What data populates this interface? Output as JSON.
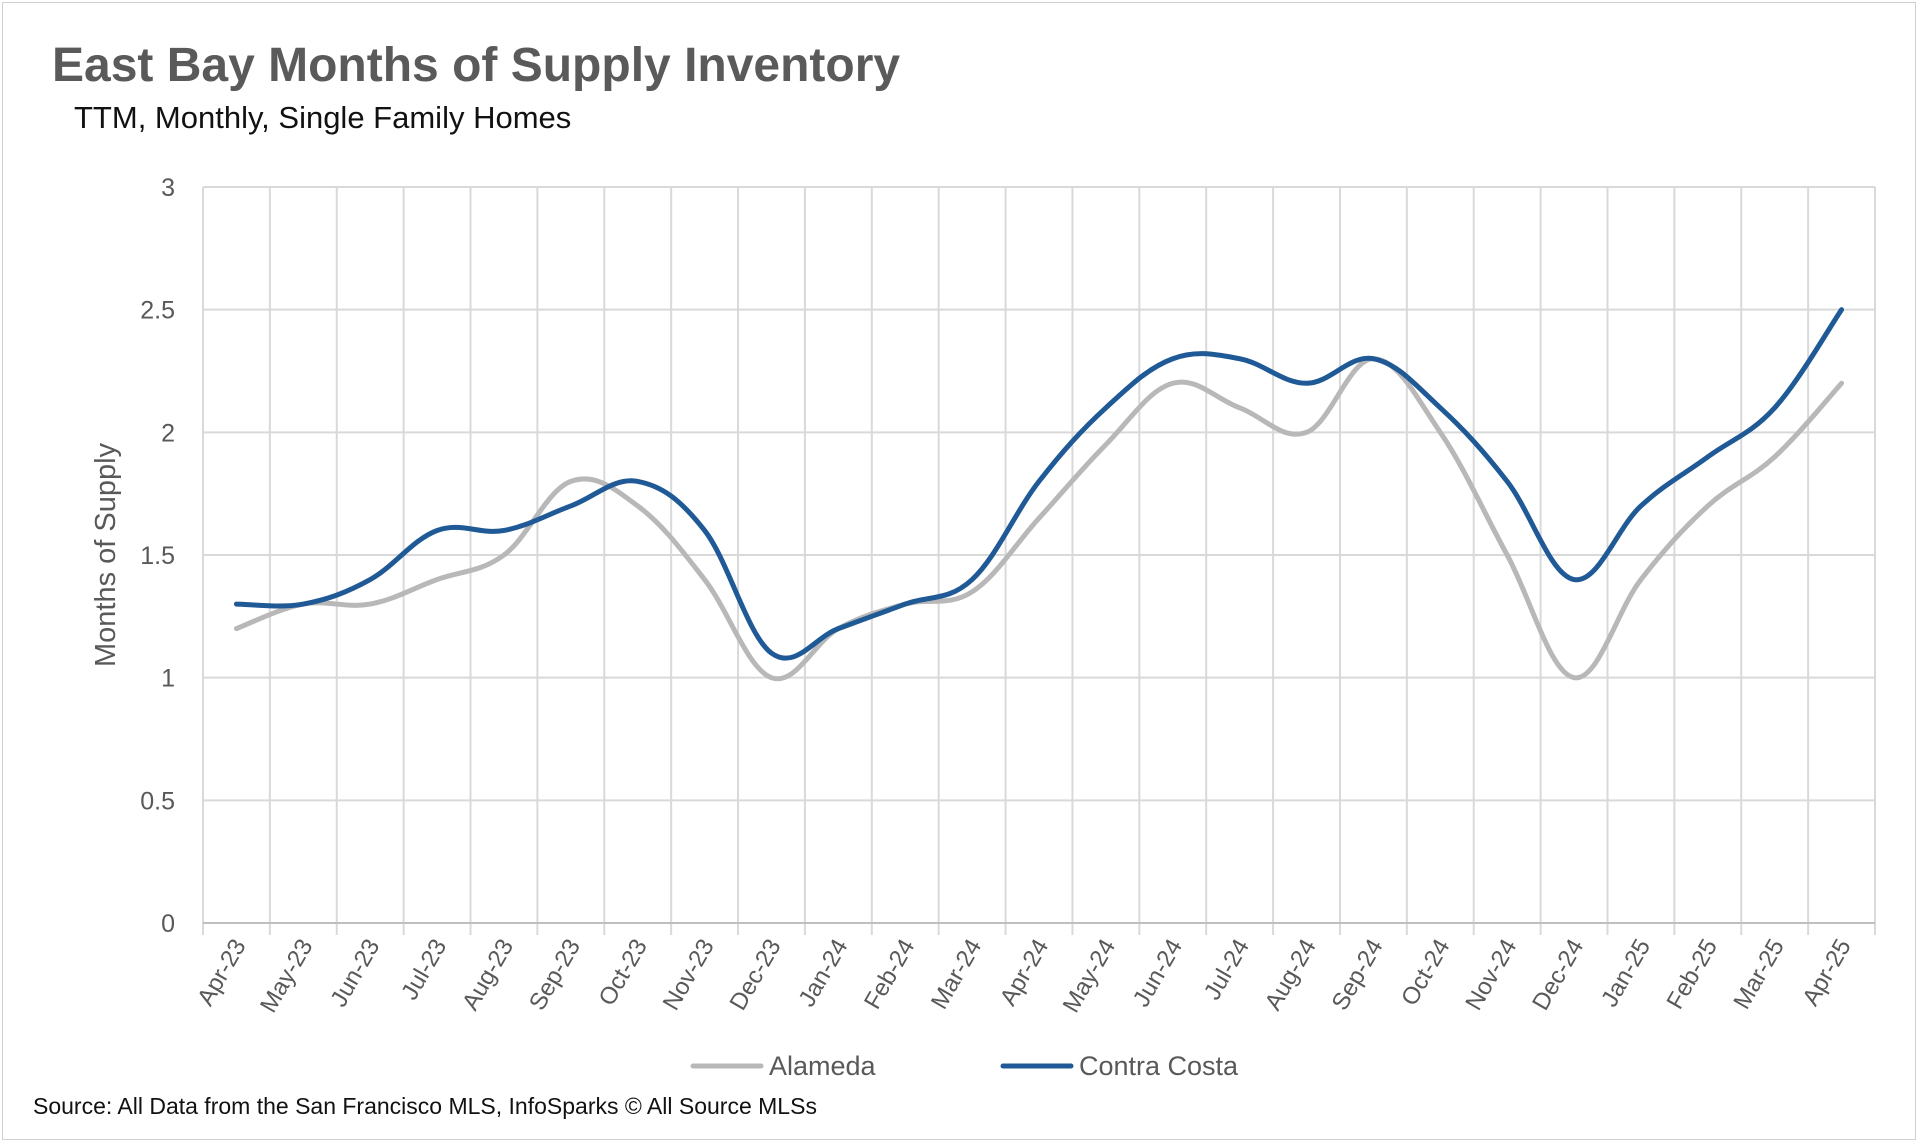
{
  "header": {
    "title": "East Bay Months of Supply Inventory",
    "subtitle": "TTM, Monthly, Single Family Homes"
  },
  "footer": {
    "source": "Source: All Data from the San Francisco MLS, InfoSparks © All Source MLSs"
  },
  "colors": {
    "alameda": "#b8b8b8",
    "contra_costa": "#1f5a96",
    "grid": "#d9d9d9",
    "axis_text": "#595959"
  },
  "chart_data": {
    "type": "line",
    "title": "East Bay Months of Supply Inventory",
    "subtitle": "TTM, Monthly, Single Family Homes",
    "xlabel": "",
    "ylabel": "Months of Supply",
    "ylim": [
      0,
      3
    ],
    "yticks": [
      "0",
      "0.5",
      "1",
      "1.5",
      "2",
      "2.5",
      "3"
    ],
    "grid": true,
    "legend_position": "bottom",
    "categories": [
      "Apr-23",
      "May-23",
      "Jun-23",
      "Jul-23",
      "Aug-23",
      "Sep-23",
      "Oct-23",
      "Nov-23",
      "Dec-23",
      "Jan-24",
      "Feb-24",
      "Mar-24",
      "Apr-24",
      "May-24",
      "Jun-24",
      "Jul-24",
      "Aug-24",
      "Sep-24",
      "Oct-24",
      "Nov-24",
      "Dec-24",
      "Jan-25",
      "Feb-25",
      "Mar-25",
      "Apr-25"
    ],
    "series": [
      {
        "name": "Alameda",
        "color": "#b8b8b8",
        "values": [
          1.2,
          1.3,
          1.3,
          1.4,
          1.5,
          1.8,
          1.7,
          1.4,
          1.0,
          1.2,
          1.3,
          1.35,
          1.65,
          1.95,
          2.2,
          2.1,
          2.0,
          2.3,
          2.0,
          1.5,
          1.0,
          1.4,
          1.7,
          1.9,
          2.2
        ]
      },
      {
        "name": "Contra Costa",
        "color": "#1f5a96",
        "values": [
          1.3,
          1.3,
          1.4,
          1.6,
          1.6,
          1.7,
          1.8,
          1.6,
          1.1,
          1.2,
          1.3,
          1.4,
          1.8,
          2.1,
          2.3,
          2.3,
          2.2,
          2.3,
          2.1,
          1.8,
          1.4,
          1.7,
          1.9,
          2.1,
          2.5
        ]
      }
    ]
  }
}
